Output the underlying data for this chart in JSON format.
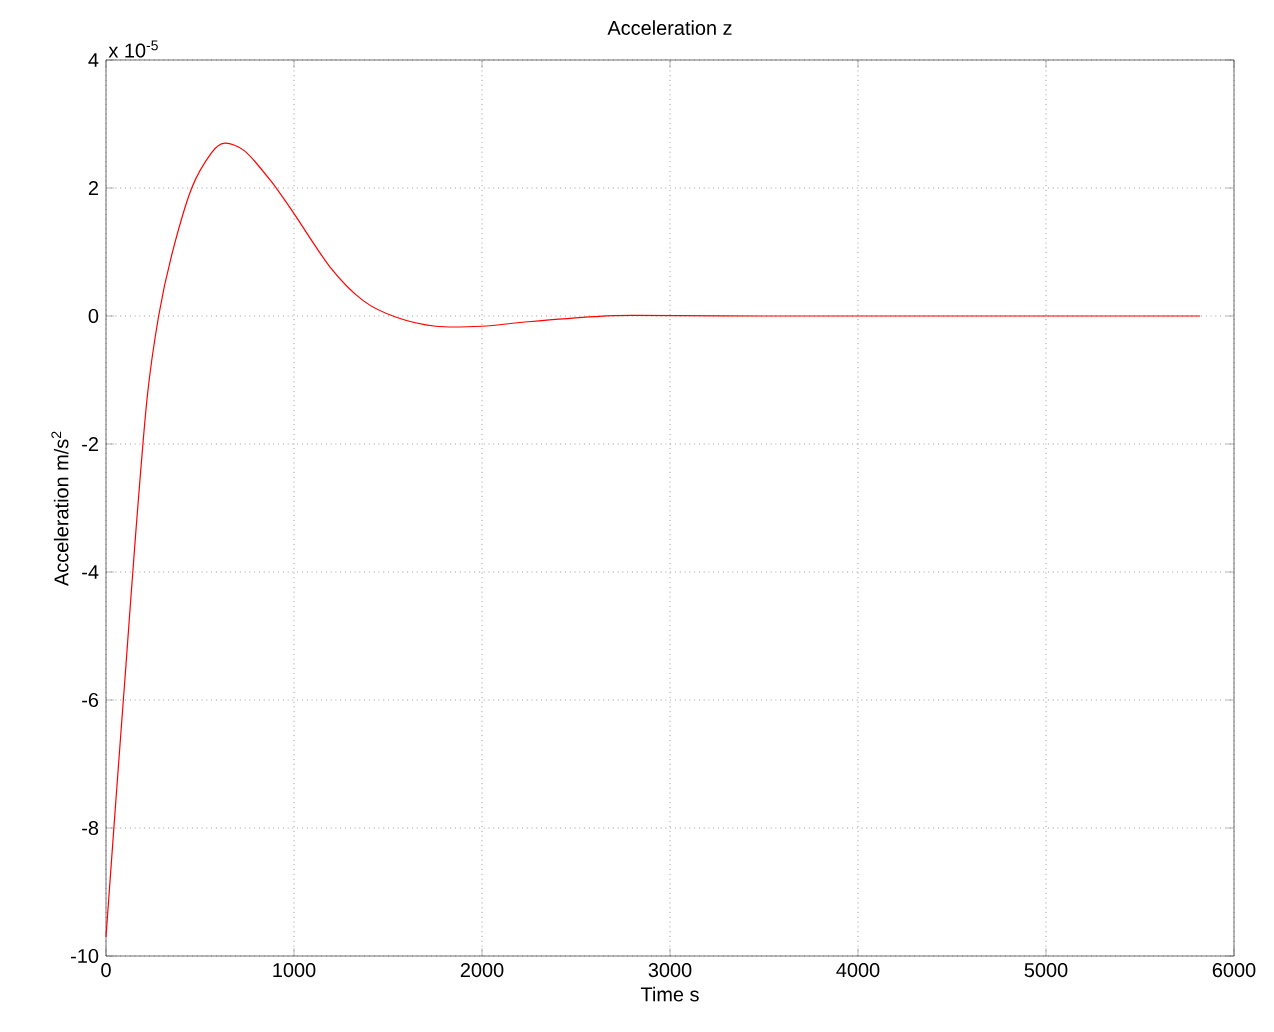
{
  "chart_data": {
    "type": "line",
    "title": "Acceleration z",
    "xlabel": "Time s",
    "ylabel": "Acceleration m/s$^{2}$",
    "annotations": [
      "x 10$^{-5}$"
    ],
    "x": [
      0,
      53,
      105,
      158,
      218,
      280,
      351,
      456,
      561,
      632,
      737,
      877,
      1000,
      1193,
      1368,
      1544,
      1754,
      2000,
      2246,
      2596,
      2807,
      3500,
      4500,
      5820
    ],
    "series": [
      {
        "color": "#ff0000",
        "values": [
          -9.7,
          -7.55,
          -5.5,
          -3.4,
          -1.3,
          0,
          0.97,
          2.0,
          2.55,
          2.7,
          2.58,
          2.11,
          1.6,
          0.76,
          0.24,
          -0.02,
          -0.16,
          -0.16,
          -0.09,
          -0.01,
          0.01,
          0,
          0,
          0
        ]
      }
    ],
    "xlim": [
      0,
      6000
    ],
    "ylim": [
      -10,
      4
    ],
    "xticks": [
      0,
      1000,
      2000,
      3000,
      4000,
      5000,
      6000
    ],
    "yticks": [
      -10,
      -8,
      -6,
      -4,
      -2,
      0,
      2,
      4
    ],
    "grid": true,
    "marker": "none",
    "line_style": "solid"
  }
}
